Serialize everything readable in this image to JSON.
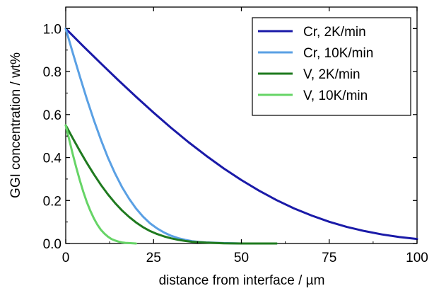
{
  "chart_data": {
    "type": "line",
    "title": "",
    "xlabel": "distance from interface / µm",
    "ylabel": "GGI concentration / wt%",
    "xlim": [
      0,
      100
    ],
    "ylim": [
      0,
      1.1
    ],
    "xticks": [
      0,
      25,
      50,
      75,
      100
    ],
    "xtick_labels": [
      "0",
      "25",
      "50",
      "75",
      "100"
    ],
    "yticks": [
      0.0,
      0.2,
      0.4,
      0.6,
      0.8,
      1.0
    ],
    "ytick_labels": [
      "0.0",
      "0.2",
      "0.4",
      "0.6",
      "0.8",
      "1.0"
    ],
    "grid": false,
    "legend_position": "top-right",
    "series": [
      {
        "name": "Cr, 2K/min",
        "color": "#1a1aa8",
        "x": [
          0,
          5,
          10,
          15,
          20,
          25,
          30,
          35,
          40,
          45,
          50,
          55,
          60,
          65,
          70,
          75,
          80,
          85,
          90,
          95,
          100
        ],
        "y": [
          1.0,
          0.918,
          0.838,
          0.759,
          0.683,
          0.609,
          0.538,
          0.471,
          0.408,
          0.349,
          0.295,
          0.246,
          0.202,
          0.163,
          0.13,
          0.101,
          0.077,
          0.058,
          0.042,
          0.03,
          0.021
        ]
      },
      {
        "name": "Cr, 10K/min",
        "color": "#5aa0e4",
        "x": [
          0,
          2,
          4,
          6,
          8,
          10,
          12,
          14,
          16,
          18,
          20,
          22,
          24,
          26,
          28,
          30,
          32,
          34,
          36,
          38,
          40,
          45,
          50,
          55,
          60
        ],
        "y": [
          1.0,
          0.888,
          0.778,
          0.673,
          0.574,
          0.483,
          0.4,
          0.327,
          0.263,
          0.209,
          0.163,
          0.125,
          0.094,
          0.07,
          0.051,
          0.036,
          0.025,
          0.017,
          0.011,
          0.007,
          0.005,
          0.002,
          0.0,
          0.0,
          0.0
        ]
      },
      {
        "name": "V, 2K/min",
        "color": "#1f7a1f",
        "x": [
          0,
          2,
          4,
          6,
          8,
          10,
          12,
          14,
          16,
          18,
          20,
          22,
          24,
          26,
          28,
          30,
          32,
          34,
          36,
          40,
          45,
          50,
          55,
          60
        ],
        "y": [
          0.55,
          0.49,
          0.431,
          0.375,
          0.322,
          0.273,
          0.229,
          0.189,
          0.154,
          0.124,
          0.098,
          0.076,
          0.058,
          0.044,
          0.033,
          0.024,
          0.017,
          0.012,
          0.008,
          0.004,
          0.001,
          0.0,
          0.0,
          0.0
        ]
      },
      {
        "name": "V, 10K/min",
        "color": "#66d466",
        "x": [
          0,
          1,
          2,
          3,
          4,
          5,
          6,
          7,
          8,
          9,
          10,
          11,
          12,
          13,
          14,
          15,
          16,
          17,
          18,
          20
        ],
        "y": [
          0.55,
          0.482,
          0.416,
          0.353,
          0.294,
          0.241,
          0.193,
          0.152,
          0.117,
          0.088,
          0.064,
          0.046,
          0.032,
          0.021,
          0.014,
          0.009,
          0.005,
          0.003,
          0.002,
          0.0
        ]
      }
    ]
  }
}
